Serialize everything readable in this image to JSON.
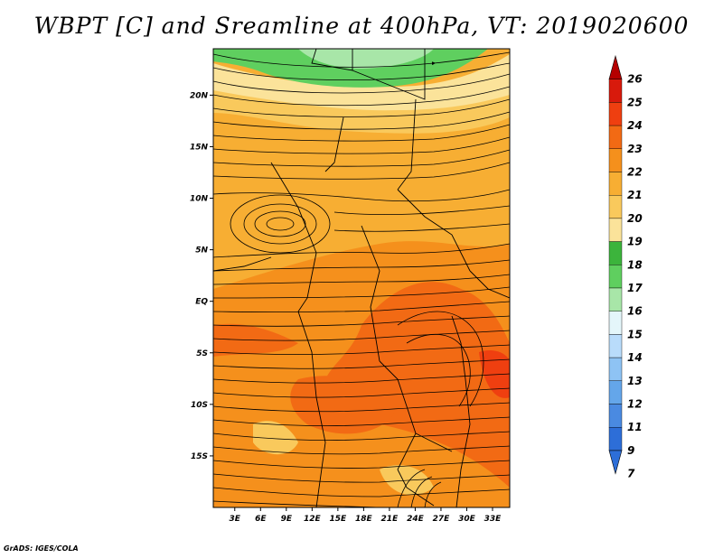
{
  "title": "WBPT [C] and Sreamline at 400hPa, VT: 2019020600",
  "credit": "GrADS: IGES/COLA",
  "map": {
    "lat_ticks": [
      "20N",
      "15N",
      "10N",
      "5N",
      "EQ",
      "5S",
      "10S",
      "15S"
    ],
    "lon_ticks": [
      "3E",
      "6E",
      "9E",
      "12E",
      "15E",
      "18E",
      "21E",
      "24E",
      "27E",
      "30E",
      "33E"
    ],
    "lat_values": [
      20,
      15,
      10,
      5,
      0,
      -5,
      -10,
      -15
    ],
    "lon_values": [
      3,
      6,
      9,
      12,
      15,
      18,
      21,
      24,
      27,
      30,
      33
    ],
    "lat_range": [
      -20,
      24.5
    ],
    "lon_range": [
      0.5,
      35
    ]
  },
  "colorbar": {
    "labels": [
      "26",
      "25",
      "24",
      "23",
      "22",
      "21",
      "20",
      "19",
      "18",
      "17",
      "16",
      "15",
      "14",
      "13",
      "12",
      "11",
      "9",
      "7"
    ],
    "colors": [
      "#b50000",
      "#d81a0c",
      "#ef3f10",
      "#f26a14",
      "#f5901c",
      "#f7ae33",
      "#f9c95c",
      "#fbe39a",
      "#3cb43c",
      "#5fcf5f",
      "#a8e6a8",
      "#e4f6fa",
      "#b9dcfb",
      "#8ec3f4",
      "#64a6ea",
      "#4a8ae1",
      "#2d6ed8",
      "#2d6ed8"
    ]
  }
}
